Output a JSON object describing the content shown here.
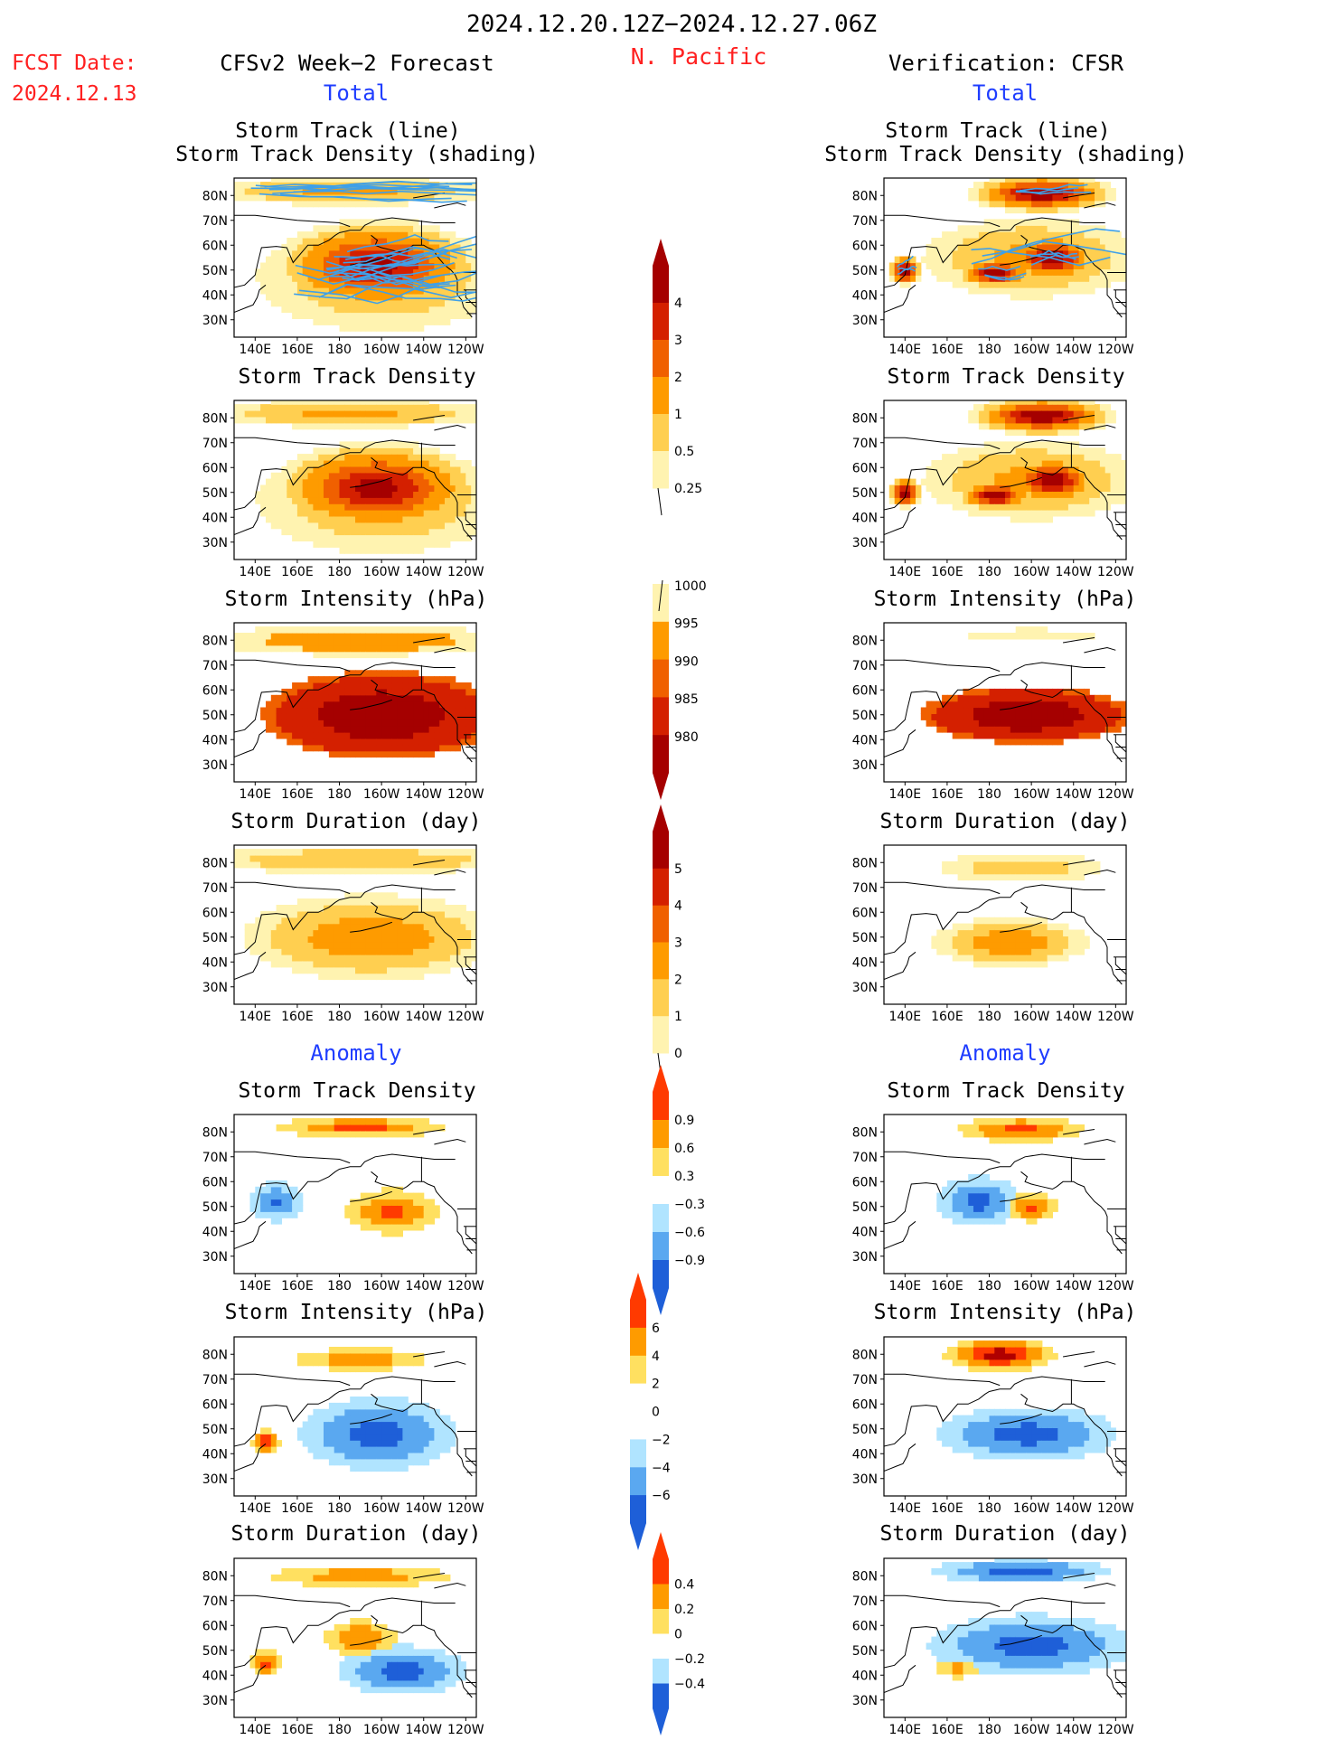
{
  "header": {
    "date_range": "2024.12.20.12Z−2024.12.27.06Z",
    "region": "N. Pacific",
    "fcst_date_label": "FCST Date:",
    "fcst_date_value": "2024.12.13",
    "left_title": "CFSv2 Week−2 Forecast",
    "right_title": "Verification: CFSR",
    "total_label": "Total",
    "anomaly_label": "Anomaly"
  },
  "colors": {
    "blue_text": "#1f3dff",
    "red_text": "#ff2020",
    "track_line": "#3fa0e8",
    "coast": "#000000"
  },
  "map_axes": {
    "lon_ticks": [
      "140E",
      "160E",
      "180",
      "160W",
      "140W",
      "120W"
    ],
    "lat_ticks": [
      "80N",
      "70N",
      "60N",
      "50N",
      "40N",
      "30N"
    ]
  },
  "panel_titles": {
    "track": [
      "Storm Track (line)",
      "Storm Track Density (shading)"
    ],
    "density": "Storm Track Density",
    "intensity": "Storm Intensity (hPa)",
    "duration": "Storm Duration (day)"
  },
  "colorbars": {
    "density_total": {
      "labels": [
        "4",
        "3",
        "2",
        "1",
        "0.5",
        "0.25"
      ],
      "colors": [
        "#a50000",
        "#d42000",
        "#f06000",
        "#fe9b00",
        "#ffcf50",
        "#fff3b0"
      ]
    },
    "intensity_total": {
      "labels": [
        "1000",
        "995",
        "990",
        "985",
        "980"
      ],
      "colors": [
        "#fff3b0",
        "#fe9b00",
        "#f06000",
        "#d42000",
        "#a50000"
      ]
    },
    "duration_total": {
      "labels": [
        "5",
        "4",
        "3",
        "2",
        "1",
        "0"
      ],
      "colors": [
        "#a50000",
        "#d42000",
        "#f06000",
        "#fe9b00",
        "#ffcf50",
        "#fff3b0"
      ]
    },
    "density_anom": {
      "labels": [
        "0.9",
        "0.6",
        "0.3",
        "−0.3",
        "−0.6",
        "−0.9"
      ],
      "colors": [
        "#ff3a00",
        "#fe9b00",
        "#ffe060",
        "#ffffff",
        "#b0e4ff",
        "#5aa8f0",
        "#1e5fd8"
      ]
    },
    "intensity_anom": {
      "labels": [
        "6",
        "4",
        "2",
        "0",
        "−2",
        "−4",
        "−6"
      ],
      "colors": [
        "#ff3a00",
        "#fe9b00",
        "#ffe060",
        "#ffffff",
        "#ffffff",
        "#b0e4ff",
        "#5aa8f0",
        "#1e5fd8"
      ]
    },
    "duration_anom": {
      "labels": [
        "0.4",
        "0.2",
        "0",
        "−0.2",
        "−0.4"
      ],
      "colors": [
        "#ff3a00",
        "#fe9b00",
        "#ffe060",
        "#ffffff",
        "#b0e4ff",
        "#1e5fd8"
      ]
    }
  },
  "chart_data": [
    {
      "type": "heatmap",
      "side": "forecast",
      "field": "storm_track_density",
      "with_tracks": true,
      "blobs": [
        {
          "lon": -162,
          "lat": 52,
          "rx": 32,
          "ry": 12,
          "v": 4.5
        },
        {
          "lon": -175,
          "lat": 82,
          "rx": 60,
          "ry": 5,
          "v": 1.2
        },
        {
          "lon": -160,
          "lat": 47,
          "rx": 55,
          "ry": 20,
          "v": 1.0
        }
      ]
    },
    {
      "type": "heatmap",
      "side": "verification",
      "field": "storm_track_density",
      "with_tracks": true,
      "blobs": [
        {
          "lon": -155,
          "lat": 81,
          "rx": 22,
          "ry": 5,
          "v": 5
        },
        {
          "lon": -150,
          "lat": 55,
          "rx": 14,
          "ry": 6,
          "v": 5
        },
        {
          "lon": -177,
          "lat": 49,
          "rx": 12,
          "ry": 4,
          "v": 5
        },
        {
          "lon": 140,
          "lat": 50,
          "rx": 5,
          "ry": 4,
          "v": 5
        },
        {
          "lon": -160,
          "lat": 55,
          "rx": 45,
          "ry": 14,
          "v": 1.2
        }
      ]
    },
    {
      "type": "heatmap",
      "side": "forecast",
      "field": "storm_track_density",
      "blobs": [
        {
          "lon": -162,
          "lat": 52,
          "rx": 32,
          "ry": 12,
          "v": 4.5
        },
        {
          "lon": -175,
          "lat": 82,
          "rx": 60,
          "ry": 5,
          "v": 1.2
        },
        {
          "lon": -160,
          "lat": 47,
          "rx": 55,
          "ry": 20,
          "v": 1.0
        }
      ]
    },
    {
      "type": "heatmap",
      "side": "verification",
      "field": "storm_track_density",
      "blobs": [
        {
          "lon": -155,
          "lat": 81,
          "rx": 22,
          "ry": 5,
          "v": 5
        },
        {
          "lon": -150,
          "lat": 55,
          "rx": 14,
          "ry": 6,
          "v": 5
        },
        {
          "lon": -177,
          "lat": 49,
          "rx": 12,
          "ry": 4,
          "v": 5
        },
        {
          "lon": 140,
          "lat": 50,
          "rx": 5,
          "ry": 4,
          "v": 5
        },
        {
          "lon": -160,
          "lat": 55,
          "rx": 45,
          "ry": 14,
          "v": 1.2
        }
      ]
    },
    {
      "type": "heatmap",
      "side": "forecast",
      "field": "storm_intensity",
      "blobs": [
        {
          "lon": -160,
          "lat": 50,
          "rx": 45,
          "ry": 14,
          "v": 980
        },
        {
          "lon": -170,
          "lat": 80,
          "rx": 70,
          "ry": 6,
          "v": 995
        }
      ]
    },
    {
      "type": "heatmap",
      "side": "verification",
      "field": "storm_intensity",
      "blobs": [
        {
          "lon": -162,
          "lat": 50,
          "rx": 40,
          "ry": 9,
          "v": 980
        },
        {
          "lon": -160,
          "lat": 82,
          "rx": 50,
          "ry": 4,
          "v": 1000
        }
      ]
    },
    {
      "type": "heatmap",
      "side": "forecast",
      "field": "storm_duration",
      "blobs": [
        {
          "lon": -165,
          "lat": 50,
          "rx": 50,
          "ry": 14,
          "v": 3
        },
        {
          "lon": -170,
          "lat": 81,
          "rx": 70,
          "ry": 5,
          "v": 2
        }
      ]
    },
    {
      "type": "heatmap",
      "side": "verification",
      "field": "storm_duration",
      "blobs": [
        {
          "lon": -170,
          "lat": 48,
          "rx": 30,
          "ry": 8,
          "v": 3
        },
        {
          "lon": -165,
          "lat": 78,
          "rx": 40,
          "ry": 6,
          "v": 1.5
        }
      ]
    },
    {
      "type": "heatmap",
      "side": "forecast",
      "field": "storm_track_density_anomaly",
      "blobs": [
        {
          "lon": -155,
          "lat": 48,
          "rx": 22,
          "ry": 9,
          "v": 1.0
        },
        {
          "lon": -170,
          "lat": 82,
          "rx": 40,
          "ry": 4,
          "v": 1.0
        },
        {
          "lon": 150,
          "lat": 52,
          "rx": 12,
          "ry": 8,
          "v": -1.0
        }
      ]
    },
    {
      "type": "heatmap",
      "side": "verification",
      "field": "storm_track_density_anomaly",
      "blobs": [
        {
          "lon": -160,
          "lat": 50,
          "rx": 12,
          "ry": 6,
          "v": 1.0
        },
        {
          "lon": -165,
          "lat": 81,
          "rx": 30,
          "ry": 5,
          "v": 1.0
        },
        {
          "lon": 175,
          "lat": 52,
          "rx": 20,
          "ry": 10,
          "v": -1.0
        }
      ]
    },
    {
      "type": "heatmap",
      "side": "forecast",
      "field": "storm_intensity_anomaly",
      "blobs": [
        {
          "lon": -162,
          "lat": 48,
          "rx": 30,
          "ry": 12,
          "v": -5
        },
        {
          "lon": 145,
          "lat": 45,
          "rx": 5,
          "ry": 4,
          "v": 6
        },
        {
          "lon": -170,
          "lat": 78,
          "rx": 30,
          "ry": 4,
          "v": 3
        }
      ]
    },
    {
      "type": "heatmap",
      "side": "verification",
      "field": "storm_intensity_anomaly",
      "blobs": [
        {
          "lon": -162,
          "lat": 48,
          "rx": 35,
          "ry": 9,
          "v": -5
        },
        {
          "lon": -175,
          "lat": 80,
          "rx": 20,
          "ry": 5,
          "v": 7
        }
      ]
    },
    {
      "type": "heatmap",
      "side": "forecast",
      "field": "storm_duration_anomaly",
      "blobs": [
        {
          "lon": -150,
          "lat": 42,
          "rx": 25,
          "ry": 8,
          "v": -0.5
        },
        {
          "lon": -170,
          "lat": 55,
          "rx": 15,
          "ry": 6,
          "v": 0.4
        },
        {
          "lon": 145,
          "lat": 45,
          "rx": 6,
          "ry": 4,
          "v": 0.5
        },
        {
          "lon": -170,
          "lat": 80,
          "rx": 40,
          "ry": 4,
          "v": 0.3
        }
      ]
    },
    {
      "type": "heatmap",
      "side": "verification",
      "field": "storm_duration_anomaly",
      "blobs": [
        {
          "lon": -160,
          "lat": 52,
          "rx": 40,
          "ry": 10,
          "v": -0.5
        },
        {
          "lon": -165,
          "lat": 82,
          "rx": 35,
          "ry": 4,
          "v": -0.5
        },
        {
          "lon": 165,
          "lat": 43,
          "rx": 10,
          "ry": 4,
          "v": 0.25
        }
      ]
    }
  ]
}
